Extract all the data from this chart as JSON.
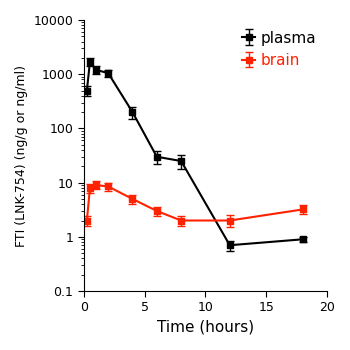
{
  "plasma": {
    "time": [
      0.25,
      0.5,
      1.0,
      2.0,
      4.0,
      6.0,
      8.0,
      12.0,
      18.0
    ],
    "mean": [
      500,
      1700,
      1200,
      1050,
      200,
      30,
      25,
      0.7,
      0.9
    ],
    "err_low": [
      100,
      300,
      200,
      150,
      50,
      8,
      7,
      0.15,
      0.1
    ],
    "err_high": [
      100,
      300,
      200,
      150,
      50,
      8,
      7,
      0.15,
      0.1
    ],
    "color": "#000000",
    "label": "plasma"
  },
  "brain": {
    "time": [
      0.25,
      0.5,
      1.0,
      2.0,
      4.0,
      6.0,
      8.0,
      12.0,
      18.0
    ],
    "mean": [
      2.0,
      8.0,
      9.0,
      8.5,
      5.0,
      3.0,
      2.0,
      2.0,
      3.2
    ],
    "err_low": [
      0.4,
      1.5,
      1.5,
      1.5,
      1.0,
      0.6,
      0.4,
      0.5,
      0.6
    ],
    "err_high": [
      0.4,
      1.5,
      1.5,
      1.5,
      1.0,
      0.6,
      0.4,
      0.5,
      0.6
    ],
    "color": "#ff2200",
    "label": "brain"
  },
  "ylabel": "FTI (LNK-754) (ng/g or ng/ml)",
  "xlabel": "Time (hours)",
  "ylim_log": [
    0.1,
    10000
  ],
  "xlim": [
    0,
    20
  ],
  "xticks": [
    0,
    5,
    10,
    15,
    20
  ],
  "yticks": [
    0.1,
    1,
    10,
    100,
    1000,
    10000
  ],
  "ytick_labels": [
    "0.1",
    "1",
    "10",
    "100",
    "1000",
    "10000"
  ],
  "background_color": "#ffffff",
  "marker": "s",
  "markersize": 5,
  "linewidth": 1.5,
  "capsize": 3,
  "elinewidth": 1.0,
  "capthick": 1.0,
  "xlabel_fontsize": 11,
  "ylabel_fontsize": 9,
  "tick_fontsize": 9,
  "legend_fontsize": 11
}
